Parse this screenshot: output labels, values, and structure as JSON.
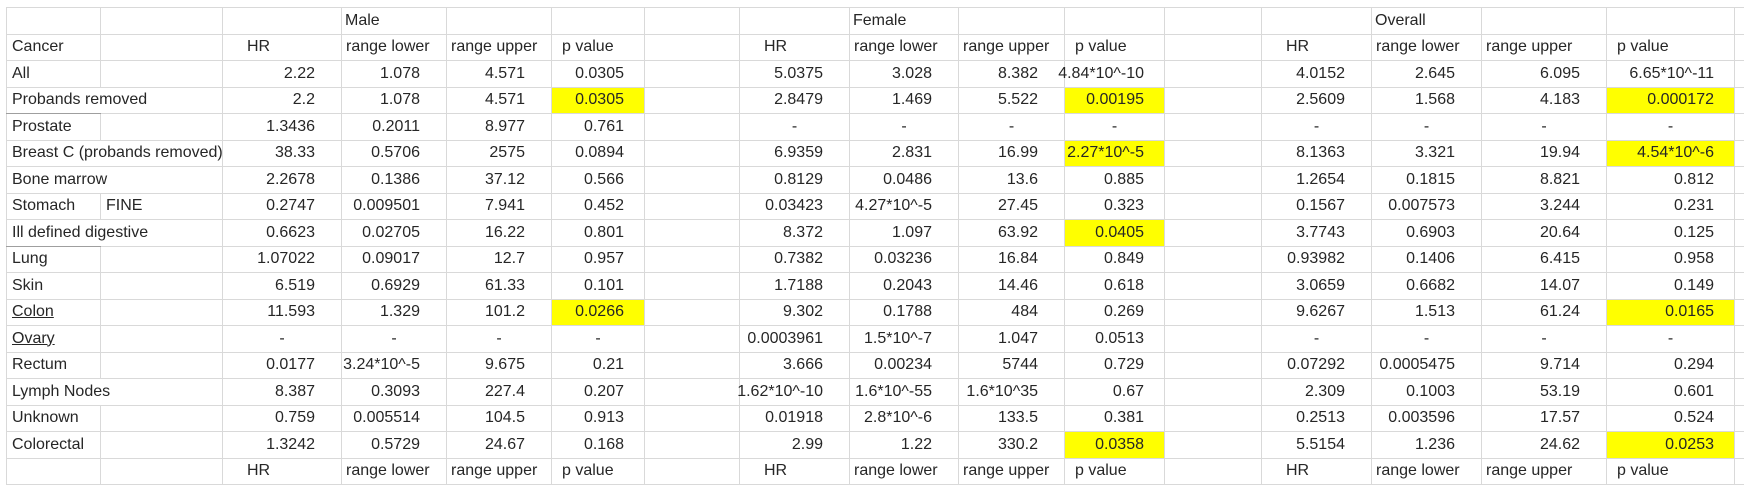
{
  "sheet": {
    "groups": [
      {
        "label": "Male"
      },
      {
        "label": "Female"
      },
      {
        "label": "Overall"
      }
    ],
    "column_headers": {
      "cancer": "Cancer",
      "hr": "HR",
      "range_lower": "range lower",
      "range_upper": "range upper",
      "p_value": "p value"
    },
    "colors": {
      "highlight": "#ffff00",
      "gridline": "#d9d9d9"
    },
    "rows": [
      {
        "label": "All",
        "male": {
          "hr": "2.22",
          "lower": "1.078",
          "upper": "4.571",
          "p": "0.0305",
          "p_highlight": false
        },
        "female": {
          "hr": "5.0375",
          "lower": "3.028",
          "upper": "8.382",
          "p": "4.84*10^-10",
          "p_highlight": false
        },
        "overall": {
          "hr": "4.0152",
          "lower": "2.645",
          "upper": "6.095",
          "p": "6.65*10^-11",
          "p_highlight": false
        }
      },
      {
        "label": "Probands removed",
        "label_cell_border": true,
        "male": {
          "hr": "2.2",
          "lower": "1.078",
          "upper": "4.571",
          "p": "0.0305",
          "p_highlight": true
        },
        "female": {
          "hr": "2.8479",
          "lower": "1.469",
          "upper": "5.522",
          "p": "0.00195",
          "p_highlight": true
        },
        "overall": {
          "hr": "2.5609",
          "lower": "1.568",
          "upper": "4.183",
          "p": "0.000172",
          "p_highlight": true
        }
      },
      {
        "label": "Prostate",
        "male": {
          "hr": "1.3436",
          "lower": "0.2011",
          "upper": "8.977",
          "p": "0.761",
          "p_highlight": false
        },
        "female": {
          "hr": "-",
          "lower": "-",
          "upper": "-",
          "p": "-",
          "p_highlight": false
        },
        "overall": {
          "hr": "-",
          "lower": "-",
          "upper": "-",
          "p": "-",
          "p_highlight": false
        }
      },
      {
        "label": "Breast C (probands removed)",
        "male": {
          "hr": "38.33",
          "lower": "0.5706",
          "upper": "2575",
          "p": "0.0894",
          "p_highlight": false
        },
        "female": {
          "hr": "6.9359",
          "lower": "2.831",
          "upper": "16.99",
          "p": "2.27*10^-5",
          "p_highlight": true
        },
        "overall": {
          "hr": "8.1363",
          "lower": "3.321",
          "upper": "19.94",
          "p": "4.54*10^-6",
          "p_highlight": true
        }
      },
      {
        "label": "Bone marrow",
        "male": {
          "hr": "2.2678",
          "lower": "0.1386",
          "upper": "37.12",
          "p": "0.566",
          "p_highlight": false
        },
        "female": {
          "hr": "0.8129",
          "lower": "0.0486",
          "upper": "13.6",
          "p": "0.885",
          "p_highlight": false
        },
        "overall": {
          "hr": "1.2654",
          "lower": "0.1815",
          "upper": "8.821",
          "p": "0.812",
          "p_highlight": false
        }
      },
      {
        "label": "Stomach",
        "label2": "FINE",
        "male": {
          "hr": "0.2747",
          "lower": "0.009501",
          "upper": "7.941",
          "p": "0.452",
          "p_highlight": false
        },
        "female": {
          "hr": "0.03423",
          "lower": "4.27*10^-5",
          "upper": "27.45",
          "p": "0.323",
          "p_highlight": false
        },
        "overall": {
          "hr": "0.1567",
          "lower": "0.007573",
          "upper": "3.244",
          "p": "0.231",
          "p_highlight": false
        }
      },
      {
        "label": "Ill defined digestive",
        "label_cell_border": true,
        "male": {
          "hr": "0.6623",
          "lower": "0.02705",
          "upper": "16.22",
          "p": "0.801",
          "p_highlight": false
        },
        "female": {
          "hr": "8.372",
          "lower": "1.097",
          "upper": "63.92",
          "p": "0.0405",
          "p_highlight": true
        },
        "overall": {
          "hr": "3.7743",
          "lower": "0.6903",
          "upper": "20.64",
          "p": "0.125",
          "p_highlight": false
        }
      },
      {
        "label": "Lung",
        "male": {
          "hr": "1.07022",
          "lower": "0.09017",
          "upper": "12.7",
          "p": "0.957",
          "p_highlight": false
        },
        "female": {
          "hr": "0.7382",
          "lower": "0.03236",
          "upper": "16.84",
          "p": "0.849",
          "p_highlight": false
        },
        "overall": {
          "hr": "0.93982",
          "lower": "0.1406",
          "upper": "6.415",
          "p": "0.958",
          "p_highlight": false
        }
      },
      {
        "label": "Skin",
        "male": {
          "hr": "6.519",
          "lower": "0.6929",
          "upper": "61.33",
          "p": "0.101",
          "p_highlight": false
        },
        "female": {
          "hr": "1.7188",
          "lower": "0.2043",
          "upper": "14.46",
          "p": "0.618",
          "p_highlight": false
        },
        "overall": {
          "hr": "3.0659",
          "lower": "0.6682",
          "upper": "14.07",
          "p": "0.149",
          "p_highlight": false
        }
      },
      {
        "label": "Colon",
        "label_underline": true,
        "male": {
          "hr": "11.593",
          "lower": "1.329",
          "upper": "101.2",
          "p": "0.0266",
          "p_highlight": true
        },
        "female": {
          "hr": "9.302",
          "lower": "0.1788",
          "upper": "484",
          "p": "0.269",
          "p_highlight": false
        },
        "overall": {
          "hr": "9.6267",
          "lower": "1.513",
          "upper": "61.24",
          "p": "0.0165",
          "p_highlight": true
        }
      },
      {
        "label": "Ovary",
        "label_underline": true,
        "male": {
          "hr": "-",
          "lower": "-",
          "upper": "-",
          "p": "-",
          "p_highlight": false
        },
        "female": {
          "hr": "0.0003961",
          "lower": "1.5*10^-7",
          "upper": "1.047",
          "p": "0.0513",
          "p_highlight": false
        },
        "overall": {
          "hr": "-",
          "lower": "-",
          "upper": "-",
          "p": "-",
          "p_highlight": false
        }
      },
      {
        "label": "Rectum",
        "male": {
          "hr": "0.0177",
          "lower": "3.24*10^-5",
          "upper": "9.675",
          "p": "0.21",
          "p_highlight": false
        },
        "female": {
          "hr": "3.666",
          "lower": "0.00234",
          "upper": "5744",
          "p": "0.729",
          "p_highlight": false
        },
        "overall": {
          "hr": "0.07292",
          "lower": "0.0005475",
          "upper": "9.714",
          "p": "0.294",
          "p_highlight": false
        }
      },
      {
        "label": "Lymph Nodes",
        "male": {
          "hr": "8.387",
          "lower": "0.3093",
          "upper": "227.4",
          "p": "0.207",
          "p_highlight": false
        },
        "female": {
          "hr": "1.62*10^-10",
          "lower": "1.6*10^-55",
          "upper": "1.6*10^35",
          "p": "0.67",
          "p_highlight": false
        },
        "overall": {
          "hr": "2.309",
          "lower": "0.1003",
          "upper": "53.19",
          "p": "0.601",
          "p_highlight": false
        }
      },
      {
        "label": "Unknown",
        "male": {
          "hr": "0.759",
          "lower": "0.005514",
          "upper": "104.5",
          "p": "0.913",
          "p_highlight": false
        },
        "female": {
          "hr": "0.01918",
          "lower": "2.8*10^-6",
          "upper": "133.5",
          "p": "0.381",
          "p_highlight": false
        },
        "overall": {
          "hr": "0.2513",
          "lower": "0.003596",
          "upper": "17.57",
          "p": "0.524",
          "p_highlight": false
        }
      },
      {
        "label": "Colorectal",
        "male": {
          "hr": "1.3242",
          "lower": "0.5729",
          "upper": "24.67",
          "p": "0.168",
          "p_highlight": false
        },
        "female": {
          "hr": "2.99",
          "lower": "1.22",
          "upper": "330.2",
          "p": "0.0358",
          "p_highlight": true
        },
        "overall": {
          "hr": "5.5154",
          "lower": "1.236",
          "upper": "24.62",
          "p": "0.0253",
          "p_highlight": true
        }
      }
    ]
  }
}
